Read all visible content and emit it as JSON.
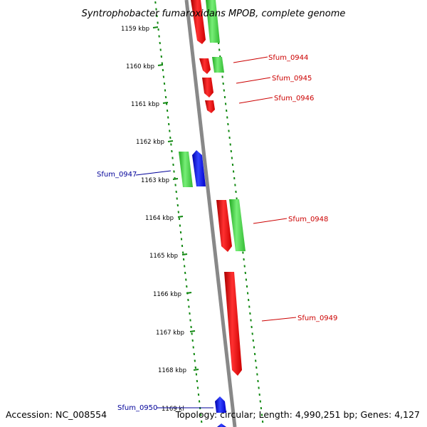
{
  "title": "Syntrophobacter fumaroxidans MPOB, complete genome",
  "accession": "Accession: NC_008554",
  "summary": "Topology: circular; Length: 4,990,251 bp; Genes: 4,127",
  "ticks": [
    "1159 kbp",
    "1160 kbp",
    "1161 kbp",
    "1162 kbp",
    "1163 kbp",
    "1164 kbp",
    "1165 kbp",
    "1166 kbp",
    "1167 kbp",
    "1168 kbp",
    "1169 kl"
  ],
  "gene_labels": [
    {
      "text": "Sfum_0944",
      "color": "#cc0000"
    },
    {
      "text": "Sfum_0945",
      "color": "#cc0000"
    },
    {
      "text": "Sfum_0946",
      "color": "#cc0000"
    },
    {
      "text": "Sfum_0947",
      "color": "#000099"
    },
    {
      "text": "Sfum_0948",
      "color": "#cc0000"
    },
    {
      "text": "Sfum_0949",
      "color": "#cc0000"
    },
    {
      "text": "Sfum_0950",
      "color": "#000099"
    }
  ],
  "colors": {
    "backbone": "#888888",
    "reverse_strand_gene": "#ee0000",
    "forward_strand_gene": "#1111ee",
    "other_feature": "#44cc44",
    "dotted_ring": "#118811"
  }
}
